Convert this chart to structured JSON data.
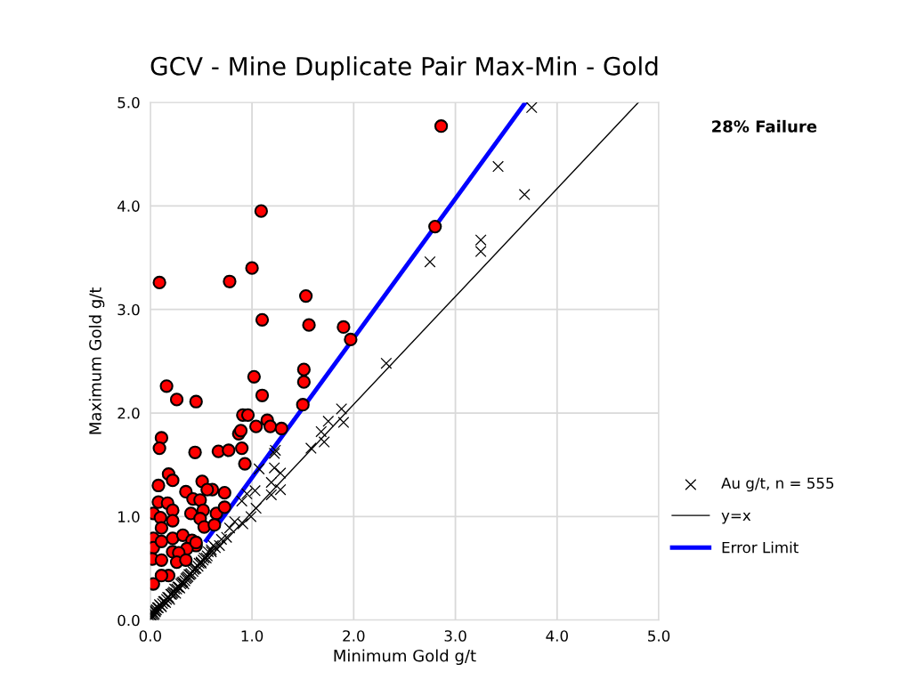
{
  "chart_data": {
    "type": "scatter",
    "title": "GCV - Mine Duplicate Pair Max-Min - Gold",
    "xlabel": "Minimum Gold g/t",
    "ylabel": "Maximum Gold g/t",
    "xlim": [
      0,
      5
    ],
    "ylim": [
      0,
      5
    ],
    "xticks": [
      {
        "value": 0,
        "label": "0.0"
      },
      {
        "value": 1,
        "label": "1.0"
      },
      {
        "value": 2,
        "label": "2.0"
      },
      {
        "value": 3,
        "label": "3.0"
      },
      {
        "value": 4,
        "label": "4.0"
      },
      {
        "value": 5,
        "label": "5.0"
      }
    ],
    "yticks": [
      {
        "value": 0,
        "label": "0.0"
      },
      {
        "value": 1,
        "label": "1.0"
      },
      {
        "value": 2,
        "label": "2.0"
      },
      {
        "value": 3,
        "label": "3.0"
      },
      {
        "value": 4,
        "label": "4.0"
      },
      {
        "value": 5,
        "label": "5.0"
      }
    ],
    "grid": true,
    "legend": "right",
    "annotations": [
      "28% Failure"
    ],
    "series": [
      {
        "name": "Au g/t, n = 555",
        "marker": "cross",
        "color": "#000000",
        "x": [
          2.32,
          1.88,
          1.75,
          1.9,
          1.68,
          1.71,
          1.58,
          1.23,
          1.22,
          1.07,
          1.22,
          1.28,
          1.19,
          1.28,
          1.03,
          0.95,
          0.9,
          1.04,
          1.19,
          0.99,
          0.91,
          0.83,
          0.78,
          0.75,
          0.68,
          3.75,
          3.42,
          3.68,
          3.25,
          3.25,
          2.75,
          0.62,
          0.6,
          0.57,
          0.55,
          0.52,
          0.5,
          0.48,
          0.45,
          0.43,
          0.4,
          0.38,
          0.36,
          0.34,
          0.32,
          0.3,
          0.28,
          0.26,
          0.24,
          0.22,
          0.2,
          0.18,
          0.16,
          0.14,
          0.12,
          0.1,
          0.08,
          0.06,
          0.05,
          0.04,
          0.03,
          0.02,
          0.01,
          0.01,
          0.02,
          0.03,
          0.05,
          0.07,
          0.09,
          0.11,
          0.13,
          0.15,
          0.17,
          0.19,
          0.21,
          0.23,
          0.25,
          0.27,
          0.29,
          0.31,
          0.33,
          0.35,
          0.37,
          0.39,
          0.42,
          0.44,
          0.47,
          0.5,
          0.53,
          0.56,
          0.6,
          0.64,
          0.7
        ],
        "values": [
          2.48,
          2.04,
          1.92,
          1.91,
          1.82,
          1.72,
          1.66,
          1.64,
          1.61,
          1.46,
          1.47,
          1.42,
          1.33,
          1.26,
          1.25,
          1.22,
          1.15,
          1.08,
          1.21,
          1.0,
          0.93,
          0.95,
          0.89,
          0.8,
          0.72,
          4.95,
          4.38,
          4.11,
          3.67,
          3.56,
          3.46,
          0.72,
          0.68,
          0.66,
          0.6,
          0.58,
          0.56,
          0.55,
          0.5,
          0.49,
          0.45,
          0.44,
          0.41,
          0.38,
          0.37,
          0.35,
          0.32,
          0.3,
          0.3,
          0.26,
          0.25,
          0.22,
          0.2,
          0.18,
          0.16,
          0.14,
          0.12,
          0.1,
          0.08,
          0.06,
          0.05,
          0.03,
          0.02,
          0.05,
          0.08,
          0.1,
          0.09,
          0.12,
          0.15,
          0.13,
          0.18,
          0.17,
          0.22,
          0.2,
          0.25,
          0.27,
          0.26,
          0.32,
          0.31,
          0.36,
          0.35,
          0.4,
          0.42,
          0.44,
          0.47,
          0.5,
          0.52,
          0.55,
          0.6,
          0.62,
          0.66,
          0.7,
          0.78
        ]
      },
      {
        "marker": "circle",
        "color": "#ff0000",
        "x": [
          0.09,
          0.78,
          1.0,
          1.09,
          1.53,
          1.1,
          1.56,
          1.9,
          1.97,
          2.86,
          2.8,
          0.16,
          0.26,
          0.45,
          1.02,
          1.1,
          1.51,
          1.51,
          1.5,
          0.91,
          0.96,
          1.04,
          1.15,
          1.18,
          1.29,
          0.87,
          0.89,
          0.11,
          0.09,
          0.44,
          0.67,
          0.77,
          0.9,
          0.93,
          0.08,
          0.18,
          0.22,
          0.51,
          0.35,
          0.61,
          0.73,
          0.56,
          0.08,
          0.17,
          0.22,
          0.03,
          0.1,
          0.42,
          0.49,
          0.52,
          0.4,
          0.65,
          0.73,
          0.22,
          0.11,
          0.49,
          0.53,
          0.63,
          0.03,
          0.03,
          0.11,
          0.22,
          0.32,
          0.41,
          0.45,
          0.36,
          0.22,
          0.28,
          0.02,
          0.11,
          0.26,
          0.18,
          0.03,
          0.11,
          0.35,
          0.45
        ],
        "values": [
          3.26,
          3.27,
          3.4,
          3.95,
          3.13,
          2.9,
          2.85,
          2.83,
          2.71,
          4.77,
          3.8,
          2.26,
          2.13,
          2.11,
          2.35,
          2.17,
          2.42,
          2.3,
          2.08,
          1.98,
          1.98,
          1.87,
          1.93,
          1.87,
          1.85,
          1.8,
          1.83,
          1.76,
          1.66,
          1.62,
          1.63,
          1.64,
          1.66,
          1.51,
          1.3,
          1.41,
          1.35,
          1.34,
          1.24,
          1.26,
          1.23,
          1.26,
          1.14,
          1.13,
          1.06,
          1.03,
          0.99,
          1.17,
          1.16,
          1.06,
          1.03,
          1.03,
          1.09,
          0.96,
          0.89,
          0.98,
          0.9,
          0.92,
          0.79,
          0.7,
          0.76,
          0.79,
          0.82,
          0.77,
          0.72,
          0.69,
          0.66,
          0.65,
          0.59,
          0.58,
          0.56,
          0.43,
          0.35,
          0.43,
          0.58,
          0.75
        ]
      },
      {
        "name": "y=x",
        "type": "line",
        "color": "#000000",
        "line_style": "solid",
        "x": [
          0,
          4.8
        ],
        "values": [
          0,
          5.0
        ]
      },
      {
        "name": "Error Limit",
        "type": "line",
        "color": "#0000ff",
        "line_style": "solid",
        "x": [
          0.55,
          3.69
        ],
        "values": [
          0.77,
          5.0
        ]
      }
    ]
  }
}
